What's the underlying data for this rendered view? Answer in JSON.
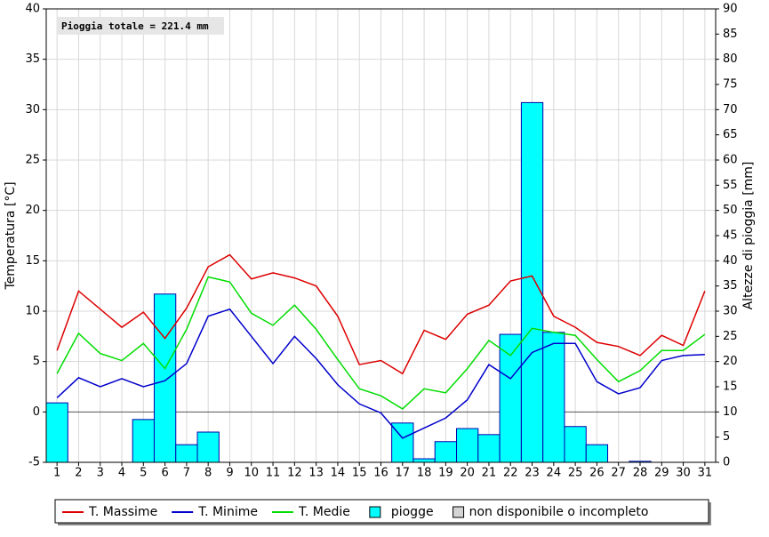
{
  "chart_data": {
    "type": "combo",
    "annotation": "Pioggia totale = 221.4 mm",
    "ylabel": "Temperatura [°C]",
    "y2label": "Altezze di pioggia [mm]",
    "categories": [
      "1",
      "2",
      "3",
      "4",
      "5",
      "6",
      "7",
      "8",
      "9",
      "10",
      "11",
      "12",
      "13",
      "14",
      "15",
      "16",
      "17",
      "18",
      "19",
      "20",
      "21",
      "22",
      "23",
      "24",
      "25",
      "26",
      "27",
      "28",
      "29",
      "30",
      "31"
    ],
    "series": [
      {
        "name": "T. Massime",
        "type": "line",
        "color": "#dd0000",
        "values": [
          6.1,
          12.0,
          10.2,
          8.4,
          9.9,
          7.3,
          10.3,
          14.4,
          15.6,
          13.2,
          13.8,
          13.3,
          12.5,
          9.5,
          4.7,
          5.1,
          3.8,
          8.1,
          7.2,
          9.7,
          10.6,
          13.0,
          13.5,
          9.5,
          8.4,
          6.9,
          6.5,
          5.6,
          7.6,
          6.6,
          12.0
        ]
      },
      {
        "name": "T. Minime",
        "type": "line",
        "color": "#0000cc",
        "values": [
          1.4,
          3.4,
          2.5,
          3.3,
          2.5,
          3.1,
          4.8,
          9.5,
          10.2,
          7.5,
          4.8,
          7.5,
          5.3,
          2.7,
          0.8,
          -0.1,
          -2.6,
          -1.6,
          -0.6,
          1.2,
          4.7,
          3.3,
          5.9,
          6.8,
          6.8,
          3.0,
          1.8,
          2.4,
          5.1,
          5.6,
          5.7
        ]
      },
      {
        "name": "T. Medie",
        "type": "line",
        "color": "#00dd00",
        "values": [
          3.8,
          7.8,
          5.8,
          5.1,
          6.8,
          4.3,
          8.2,
          13.4,
          12.9,
          9.8,
          8.6,
          10.6,
          8.2,
          5.2,
          2.3,
          1.6,
          0.3,
          2.3,
          1.9,
          4.3,
          7.1,
          5.6,
          8.3,
          7.9,
          7.6,
          5.2,
          3.0,
          4.1,
          6.1,
          6.1,
          7.7
        ]
      },
      {
        "name": "piogge",
        "type": "bar",
        "axis": "y2",
        "color": "#00ffff",
        "values": [
          11.8,
          0,
          0,
          0,
          8.5,
          33.4,
          3.5,
          6.0,
          0,
          0,
          0,
          0,
          0,
          0,
          0,
          0,
          7.8,
          0.7,
          4.1,
          6.7,
          5.5,
          25.4,
          71.4,
          25.8,
          7.1,
          3.5,
          0,
          0.2,
          0,
          0,
          0
        ]
      }
    ],
    "legend_extra": {
      "name": "non disponibile o incompleto",
      "color": "#d4d4d4"
    },
    "ylim": [
      -5,
      40
    ],
    "yticks": [
      -5,
      0,
      5,
      10,
      15,
      20,
      25,
      30,
      35,
      40
    ],
    "y2lim": [
      0,
      90
    ],
    "y2ticks": [
      0,
      5,
      10,
      15,
      20,
      25,
      30,
      35,
      40,
      45,
      50,
      55,
      60,
      65,
      70,
      75,
      80,
      85,
      90
    ],
    "grid": true
  }
}
